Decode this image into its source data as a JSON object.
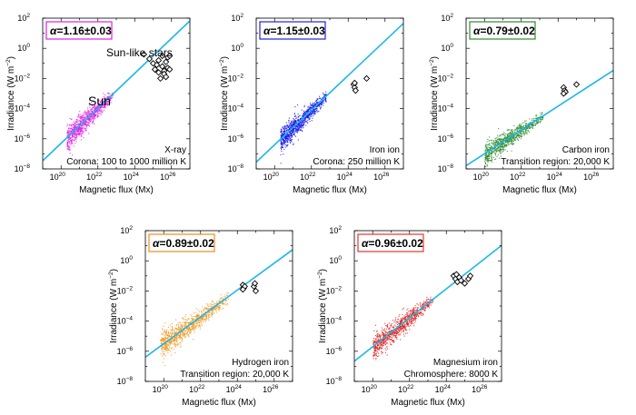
{
  "figure": {
    "xlabel": "Magnetic flux (Mx)",
    "ylabel": "Irradiance (W m",
    "ylabel_exp": "−2",
    "ylabel_close": ")",
    "fit_line_color": "#1ab7ea"
  },
  "chart_data": [
    {
      "type": "scatter",
      "panel": "x-ray",
      "xlim_log10": [
        19,
        27
      ],
      "ylim_log10": [
        -8,
        2
      ],
      "x_ticks": [
        "10",
        "10",
        "10",
        "10"
      ],
      "x_tick_exps": [
        "20",
        "22",
        "24",
        "26"
      ],
      "y_ticks": [
        "10",
        "10",
        "10",
        "10",
        "10",
        "10"
      ],
      "y_tick_exps": [
        "−8",
        "−6",
        "−4",
        "−2",
        "0",
        "2"
      ],
      "alpha_symbol": "α",
      "alpha_value": "=1.16±0.03",
      "alpha_color": "#e020e0",
      "label_line1": "X-ray",
      "label_line2": "Corona: 100 to 1000 million K",
      "sun_label": "Sun",
      "stars_label": "Sun-like stars",
      "cloud_color": "#e020e0",
      "fit": {
        "slope": 1.16,
        "intercept_log10": -29.5
      },
      "sun_cloud": {
        "x_range_log10": [
          20.3,
          22.8
        ],
        "spread_log10": 0.8
      },
      "stars": [
        [
          24.5,
          -0.4
        ],
        [
          24.8,
          -0.7
        ],
        [
          25.0,
          -1.0
        ],
        [
          25.2,
          -1.1
        ],
        [
          25.3,
          -0.8
        ],
        [
          25.5,
          -1.2
        ],
        [
          25.1,
          -1.4
        ],
        [
          25.3,
          -1.6
        ],
        [
          25.4,
          -2.0
        ],
        [
          25.6,
          -1.5
        ],
        [
          25.7,
          -0.9
        ],
        [
          25.8,
          -0.6
        ],
        [
          25.9,
          -0.5
        ],
        [
          25.8,
          -1.3
        ],
        [
          25.6,
          -1.7
        ],
        [
          25.9,
          -1.4
        ],
        [
          25.5,
          -0.5
        ],
        [
          25.7,
          -1.9
        ]
      ]
    },
    {
      "type": "scatter",
      "panel": "iron-ion-corona",
      "xlim_log10": [
        19,
        27
      ],
      "ylim_log10": [
        -8,
        2
      ],
      "x_ticks": [
        "10",
        "10",
        "10",
        "10"
      ],
      "x_tick_exps": [
        "20",
        "22",
        "24",
        "26"
      ],
      "y_ticks": [
        "10",
        "10",
        "10",
        "10",
        "10",
        "10"
      ],
      "y_tick_exps": [
        "−8",
        "−6",
        "−4",
        "−2",
        "0",
        "2"
      ],
      "alpha_symbol": "α",
      "alpha_value": "=1.15±0.03",
      "alpha_color": "#2222dd",
      "label_line1": "Iron ion",
      "label_line2": "Corona: 250 million K",
      "cloud_color": "#1414e6",
      "fit": {
        "slope": 1.15,
        "intercept_log10": -29.4
      },
      "sun_cloud": {
        "x_range_log10": [
          20.3,
          22.8
        ],
        "spread_log10": 0.8
      },
      "stars": [
        [
          24.3,
          -2.4
        ],
        [
          24.35,
          -2.6
        ],
        [
          24.4,
          -2.8
        ],
        [
          24.35,
          -2.3
        ],
        [
          25.0,
          -2.0
        ]
      ]
    },
    {
      "type": "scatter",
      "panel": "carbon-iron",
      "xlim_log10": [
        19,
        27
      ],
      "ylim_log10": [
        -8,
        2
      ],
      "x_ticks": [
        "10",
        "10",
        "10",
        "10"
      ],
      "x_tick_exps": [
        "20",
        "22",
        "24",
        "26"
      ],
      "y_ticks": [
        "10",
        "10",
        "10",
        "10",
        "10",
        "10"
      ],
      "y_tick_exps": [
        "−8",
        "−6",
        "−4",
        "−2",
        "0",
        "2"
      ],
      "alpha_symbol": "α",
      "alpha_value": "=0.79±0.02",
      "alpha_color": "#2e8b2e",
      "label_line1": "Carbon iron",
      "label_line2": "Transition region: 20,000 K",
      "cloud_color": "#2e8b2e",
      "fit": {
        "slope": 0.79,
        "intercept_log10": -22.8
      },
      "sun_cloud": {
        "x_range_log10": [
          20.0,
          23.2
        ],
        "spread_log10": 0.7
      },
      "stars": [
        [
          24.3,
          -2.6
        ],
        [
          24.35,
          -2.8
        ],
        [
          24.4,
          -2.9
        ],
        [
          24.3,
          -3.0
        ],
        [
          25.0,
          -2.4
        ]
      ]
    },
    {
      "type": "scatter",
      "panel": "hydrogen-iron",
      "xlim_log10": [
        19,
        27
      ],
      "ylim_log10": [
        -8,
        2
      ],
      "x_ticks": [
        "10",
        "10",
        "10",
        "10"
      ],
      "x_tick_exps": [
        "20",
        "22",
        "24",
        "26"
      ],
      "y_ticks": [
        "10",
        "10",
        "10",
        "10",
        "10",
        "10"
      ],
      "y_tick_exps": [
        "−8",
        "−6",
        "−4",
        "−2",
        "0",
        "2"
      ],
      "alpha_symbol": "α",
      "alpha_value": "=0.89±0.02",
      "alpha_color": "#f08c1c",
      "label_line1": "Hydrogen iron",
      "label_line2": "Transition region: 20,000 K",
      "cloud_color": "#f0961e",
      "fit": {
        "slope": 0.89,
        "intercept_log10": -23.3
      },
      "sun_cloud": {
        "x_range_log10": [
          19.8,
          23.5
        ],
        "spread_log10": 0.9
      },
      "stars": [
        [
          24.3,
          -1.6
        ],
        [
          24.35,
          -1.8
        ],
        [
          24.4,
          -1.7
        ],
        [
          24.3,
          -1.9
        ],
        [
          24.9,
          -1.7
        ],
        [
          25.0,
          -2.0
        ],
        [
          24.95,
          -1.5
        ]
      ]
    },
    {
      "type": "scatter",
      "panel": "magnesium-iron",
      "xlim_log10": [
        19,
        27
      ],
      "ylim_log10": [
        -8,
        2
      ],
      "x_ticks": [
        "10",
        "10",
        "10",
        "10"
      ],
      "x_tick_exps": [
        "20",
        "22",
        "24",
        "26"
      ],
      "y_ticks": [
        "10",
        "10",
        "10",
        "10",
        "10",
        "10"
      ],
      "y_tick_exps": [
        "−8",
        "−6",
        "−4",
        "−2",
        "0",
        "2"
      ],
      "alpha_symbol": "α",
      "alpha_value": "=0.96±0.02",
      "alpha_color": "#e8342c",
      "label_line1": "Magnesium iron",
      "label_line2": "Chromosphere: 8000 K",
      "cloud_color": "#e02020",
      "fit": {
        "slope": 0.96,
        "intercept_log10": -24.9
      },
      "sun_cloud": {
        "x_range_log10": [
          20.0,
          23.3
        ],
        "spread_log10": 0.8
      },
      "stars": [
        [
          24.4,
          -1.0
        ],
        [
          24.5,
          -1.2
        ],
        [
          24.6,
          -1.4
        ],
        [
          24.7,
          -1.1
        ],
        [
          24.8,
          -1.3
        ],
        [
          25.0,
          -1.5
        ],
        [
          25.2,
          -1.2
        ],
        [
          25.3,
          -1.0
        ],
        [
          24.55,
          -0.9
        ]
      ]
    }
  ]
}
